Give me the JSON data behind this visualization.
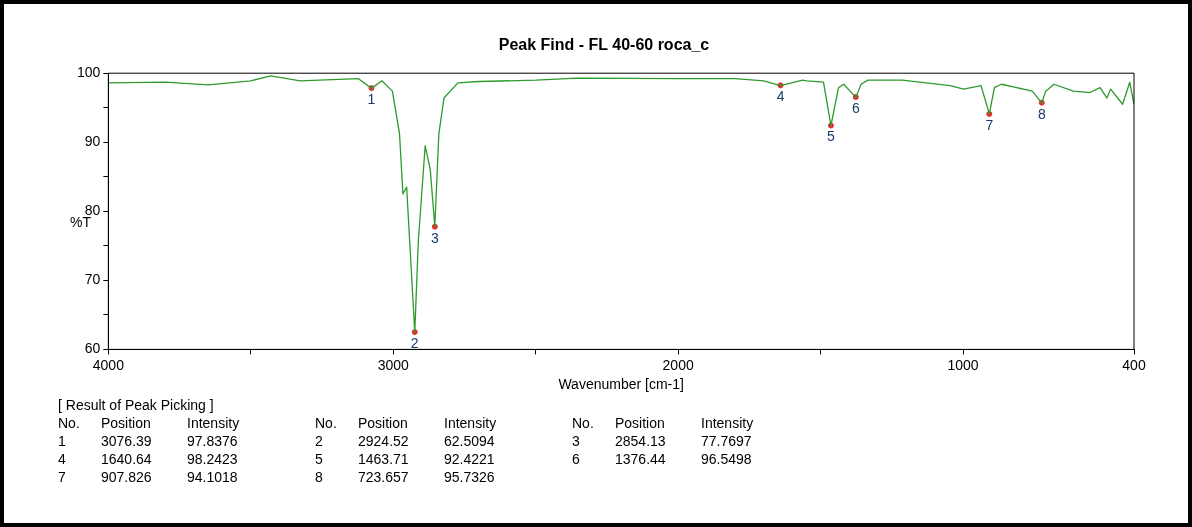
{
  "chart_data": {
    "type": "line",
    "title": "Peak Find - FL 40-60 roca_c",
    "xlabel": "Wavenumber [cm-1]",
    "ylabel": "%T",
    "xlim": [
      4000,
      400
    ],
    "xticks": [
      4000,
      {
        "value": 3500,
        "label": null
      },
      3000,
      {
        "value": 2500,
        "label": null
      },
      2000,
      {
        "value": 1500,
        "label": null
      },
      1000,
      400
    ],
    "ylim": [
      60,
      100
    ],
    "yticks": [
      60,
      {
        "value": 65,
        "label": null
      },
      70,
      {
        "value": 75,
        "label": null
      },
      80,
      {
        "value": 85,
        "label": null
      },
      90,
      {
        "value": 95,
        "label": null
      },
      100
    ],
    "grid": false,
    "legend": false,
    "series": [
      {
        "color": "#2e9a2e",
        "x": [
          4000,
          3800,
          3650,
          3500,
          3430,
          3327,
          3122,
          3076.39,
          3040,
          3003,
          2978,
          2966,
          2953,
          2924.52,
          2912,
          2888,
          2870,
          2854.13,
          2840,
          2822,
          2773,
          2700,
          2500,
          2355,
          2000,
          1800,
          1700,
          1640.64,
          1563,
          1548,
          1490,
          1463.71,
          1437,
          1419,
          1376.44,
          1358,
          1334,
          1214,
          1045,
          998,
          937,
          907.826,
          890,
          865,
          757,
          723.657,
          710,
          681,
          613,
          555,
          519,
          495,
          482,
          440,
          415,
          400
        ],
        "values": [
          98.6,
          98.7,
          98.3,
          98.9,
          99.6,
          98.9,
          99.2,
          97.8,
          98.9,
          97.4,
          91.2,
          82.5,
          83.5,
          62.5,
          75.7,
          89.5,
          86.0,
          77.8,
          91.2,
          96.4,
          98.6,
          98.8,
          99.0,
          99.3,
          99.2,
          99.2,
          98.9,
          98.2,
          99.0,
          98.9,
          98.7,
          92.4,
          97.9,
          98.4,
          96.5,
          98.4,
          99.0,
          99.0,
          98.2,
          97.7,
          98.2,
          94.1,
          97.9,
          98.4,
          97.4,
          95.7,
          97.4,
          98.4,
          97.4,
          97.2,
          97.9,
          96.4,
          97.7,
          95.5,
          98.7,
          95.5
        ]
      },
      {
        "type": "scatter",
        "color": "#e03030",
        "marker": "circle",
        "x": [
          3076.39,
          2924.52,
          2854.13,
          1640.64,
          1463.71,
          1376.44,
          907.826,
          723.657
        ],
        "values": [
          97.84,
          62.51,
          77.77,
          98.24,
          92.42,
          96.55,
          94.1,
          95.73
        ]
      }
    ],
    "annotations": [
      {
        "text": "1",
        "x": 3076.39,
        "y": 97.84
      },
      {
        "text": "2",
        "x": 2924.52,
        "y": 62.51
      },
      {
        "text": "3",
        "x": 2854.13,
        "y": 77.77
      },
      {
        "text": "4",
        "x": 1640.64,
        "y": 98.24
      },
      {
        "text": "5",
        "x": 1463.71,
        "y": 92.42
      },
      {
        "text": "6",
        "x": 1376.44,
        "y": 96.55
      },
      {
        "text": "7",
        "x": 907.826,
        "y": 94.1
      },
      {
        "text": "8",
        "x": 723.657,
        "y": 95.73
      },
      "[ Result of Peak Picking ]",
      "No. Position Intensity",
      "No. Position Intensity",
      "No. Position Intensity",
      "1 3076.39 97.8376",
      "2 2924.52 62.5094",
      "3 2854.13 77.7697",
      "4 1640.64 98.2423",
      "5 1463.71 92.4221",
      "6 1376.44 96.5498",
      "7 907.826 94.1018",
      "8 723.657 95.7326"
    ]
  }
}
